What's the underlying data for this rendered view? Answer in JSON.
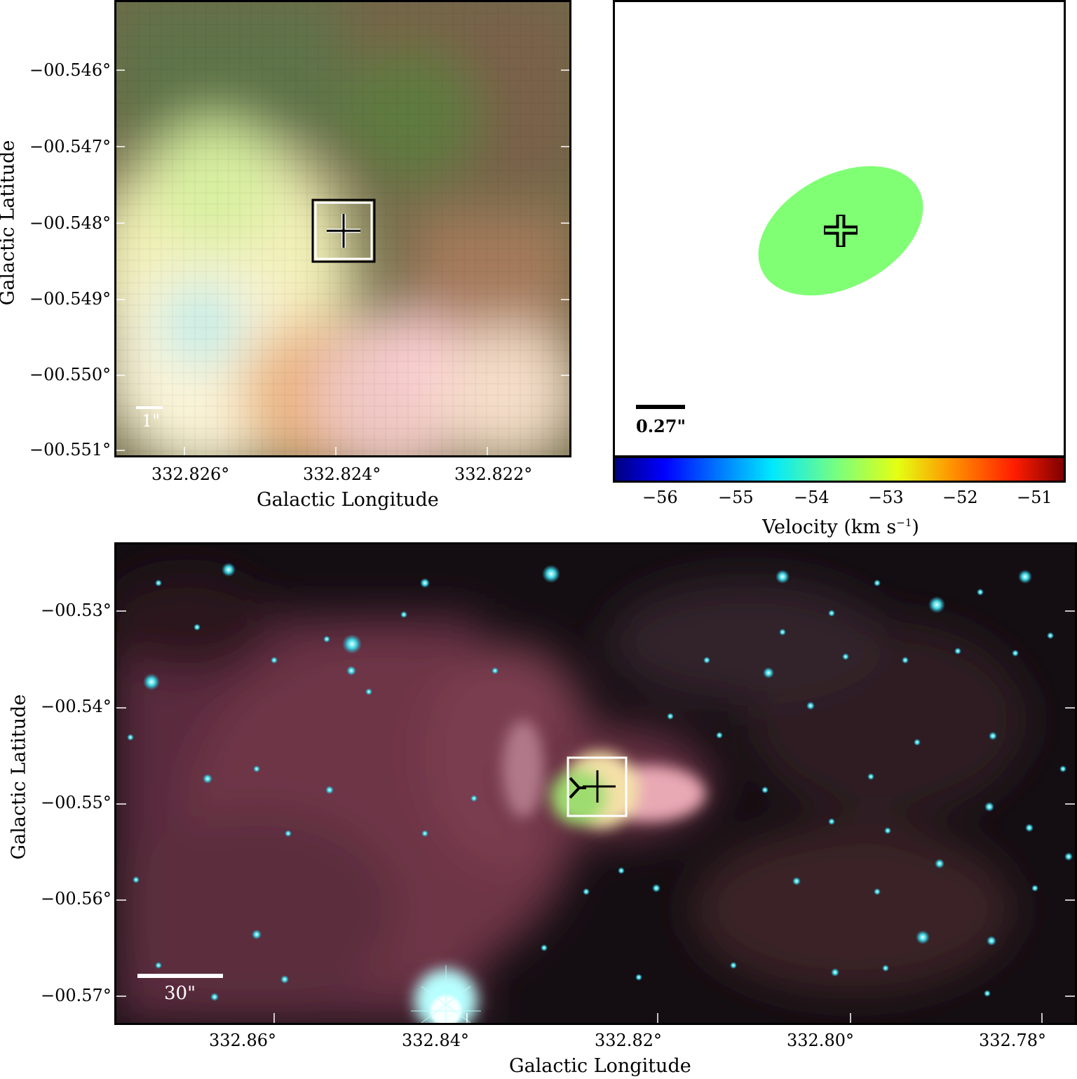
{
  "panel_top_left": {
    "xlabel": "Galactic Longitude",
    "ylabel": "Galactic Latitude",
    "x_ticks": [
      "332.826°",
      "332.824°",
      "332.822°"
    ],
    "y_ticks": [
      "−00.546°",
      "−00.547°",
      "−00.548°",
      "−00.549°",
      "−00.550°",
      "−00.551°"
    ],
    "scale_bar": "1\""
  },
  "panel_top_right": {
    "scale_bar": "0.27\"",
    "ellipse_color": "#80ff75",
    "colorbar_label": "Velocity (km s",
    "colorbar_label_sup": "−1",
    "colorbar_label_end": ")",
    "colorbar_ticks": [
      "−56",
      "−55",
      "−54",
      "−53",
      "−52",
      "−51"
    ]
  },
  "panel_bottom": {
    "xlabel": "Galactic Longitude",
    "ylabel": "Galactic Latitude",
    "x_ticks": [
      "332.86°",
      "332.84°",
      "332.82°",
      "332.80°",
      "332.78°"
    ],
    "y_ticks": [
      "−00.53°",
      "−00.54°",
      "−00.55°",
      "−00.56°",
      "−00.57°"
    ],
    "scale_bar": "30\""
  },
  "chart_data": {
    "type": "scatter",
    "x": [
      332.8239
    ],
    "y": [
      -0.5481
    ],
    "xlabel": "",
    "ylabel": "",
    "colorbar_range": [
      -56.5,
      -50.6
    ]
  }
}
